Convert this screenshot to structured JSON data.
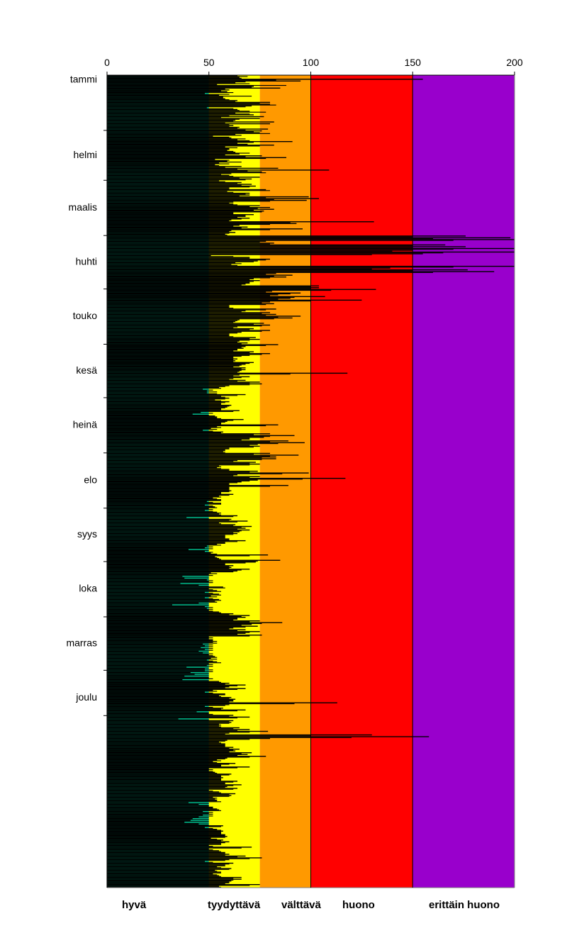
{
  "chart_data": {
    "type": "bar",
    "orientation": "horizontal",
    "x_axis": {
      "ticks": [
        0,
        50,
        100,
        150,
        200
      ],
      "range": [
        0,
        200
      ]
    },
    "y_axis": {
      "categories": [
        "tammi",
        "helmi",
        "maalis",
        "huhti",
        "touko",
        "kesä",
        "heinä",
        "elo",
        "syys",
        "loka",
        "marras",
        "joulu"
      ]
    },
    "days_per_month": [
      31,
      28,
      31,
      30,
      31,
      30,
      31,
      31,
      30,
      31,
      30,
      31
    ],
    "zones": [
      {
        "label": "hyvä",
        "from": 0,
        "to": 50,
        "color": "#00cc99"
      },
      {
        "label": "tyydyttävä",
        "from": 50,
        "to": 75,
        "color": "#ffff00"
      },
      {
        "label": "välttävä",
        "from": 75,
        "to": 100,
        "color": "#ff9900"
      },
      {
        "label": "huono",
        "from": 100,
        "to": 150,
        "color": "#ff0000"
      },
      {
        "label": "erittäin huono",
        "from": 150,
        "to": 200,
        "color": "#9900cc"
      }
    ],
    "series": [
      {
        "values": [
          64,
          65,
          155,
          95,
          63,
          54,
          72,
          85,
          60,
          59,
          48,
          55,
          57,
          58,
          64,
          80,
          80,
          71,
          49,
          64,
          70,
          63,
          72,
          77,
          75,
          63,
          82,
          80,
          62,
          65,
          79,
          76,
          75,
          63,
          52,
          61,
          64,
          91,
          64,
          82,
          58,
          60,
          59,
          63,
          65,
          76,
          88,
          53,
          59,
          55,
          53,
          66,
          84,
          109,
          76,
          61,
          60,
          75,
          71,
          55,
          66,
          71,
          73,
          60,
          78,
          59,
          70,
          70,
          99,
          104,
          98,
          62,
          62,
          75,
          80,
          82,
          77,
          62,
          72,
          68,
          70,
          61,
          131,
          93,
          65,
          69,
          96,
          61,
          63,
          58,
          176,
          198,
          200,
          78,
          82,
          166,
          176,
          200,
          150,
          200,
          155,
          51,
          70,
          80,
          74,
          63,
          61,
          200,
          139,
          177,
          190,
          83,
          91,
          88,
          72,
          75,
          70,
          68,
          104,
          104,
          132,
          81,
          95,
          84,
          107,
          90,
          125,
          80,
          82,
          60,
          60,
          83,
          68,
          80,
          83,
          95,
          91,
          65,
          63,
          77,
          80,
          64,
          72,
          80,
          66,
          60,
          60,
          73,
          75,
          65,
          69,
          84,
          68,
          67,
          64,
          72,
          80,
          70,
          62,
          64,
          63,
          72,
          68,
          65,
          68,
          68,
          65,
          118,
          65,
          70,
          62,
          68,
          75,
          76,
          60,
          55,
          47,
          49,
          49,
          68,
          56,
          60,
          53,
          60,
          56,
          61,
          59,
          56,
          65,
          46,
          42,
          53,
          54,
          67,
          59,
          56,
          84,
          54,
          51,
          47,
          57,
          80,
          92,
          77,
          70,
          89,
          97,
          74,
          75,
          60,
          58,
          57,
          80,
          94,
          83,
          83,
          64,
          73,
          75,
          55,
          54,
          60,
          74,
          99,
          64,
          75,
          117,
          74,
          66,
          60,
          89,
          60,
          60,
          61,
          56,
          62,
          55,
          52,
          56,
          49,
          56,
          48,
          53,
          50,
          48,
          54,
          55,
          64,
          39,
          61,
          69,
          55,
          63,
          71,
          68,
          70,
          65,
          64,
          58,
          58,
          60,
          68,
          58,
          54,
          49,
          48,
          40,
          48,
          51,
          79,
          53,
          55,
          85,
          73,
          58,
          62,
          61,
          70,
          64,
          51,
          50,
          37,
          38,
          49,
          50,
          36,
          45,
          57,
          50,
          54,
          48,
          55,
          51,
          48,
          55,
          53,
          45,
          32,
          48,
          49,
          50,
          55,
          62,
          70,
          68,
          64,
          75,
          86,
          71,
          74,
          62,
          68,
          75,
          68,
          76,
          50,
          50,
          52,
          52,
          47,
          48,
          46,
          48,
          45,
          47,
          50,
          53,
          51,
          49,
          54,
          50,
          49,
          39,
          48,
          48,
          41,
          43,
          38,
          50,
          37,
          55,
          60,
          68,
          60,
          68,
          52,
          48,
          58,
          55,
          61,
          63,
          62,
          113,
          60,
          48,
          57,
          68,
          44,
          50,
          62,
          70,
          35,
          62,
          61,
          55,
          55,
          65,
          70,
          79,
          60,
          130,
          158,
          80,
          59,
          55,
          58,
          58,
          62,
          65,
          63,
          71,
          69,
          78,
          59,
          54,
          52,
          63,
          56,
          70,
          50,
          50,
          53,
          61,
          56,
          57,
          56,
          64,
          58,
          66,
          59,
          64,
          50,
          55,
          63,
          61,
          52,
          53,
          54,
          40,
          45,
          50,
          52,
          55,
          47,
          50,
          47,
          45,
          42,
          41,
          38,
          45,
          57,
          48,
          54,
          57,
          56,
          58,
          59,
          51,
          57,
          60,
          56,
          50,
          71,
          50,
          55,
          58,
          60,
          68,
          76,
          60,
          48,
          62,
          58,
          54,
          61,
          53,
          56,
          52,
          55,
          66,
          66,
          61,
          60,
          75,
          55
        ]
      },
      {
        "values": [
          69,
          66,
          83,
          68,
          70,
          88,
          71,
          58,
          56,
          62,
          60,
          71,
          57,
          60,
          63,
          75,
          83,
          68,
          62,
          65,
          78,
          70,
          60,
          56,
          65,
          62,
          58,
          60,
          60,
          64,
          68,
          72,
          80,
          66,
          60,
          68,
          70,
          72,
          69,
          75,
          64,
          60,
          62,
          70,
          58,
          68,
          78,
          60,
          66,
          60,
          55,
          58,
          64,
          69,
          78,
          56,
          62,
          65,
          68,
          58,
          64,
          66,
          70,
          60,
          80,
          62,
          68,
          65,
          78,
          82,
          80,
          60,
          64,
          70,
          74,
          72,
          76,
          62,
          68,
          64,
          66,
          60,
          90,
          80,
          62,
          66,
          80,
          60,
          60,
          59,
          150,
          160,
          170,
          75,
          80,
          150,
          150,
          170,
          140,
          165,
          130,
          62,
          70,
          78,
          72,
          66,
          64,
          170,
          130,
          150,
          160,
          78,
          82,
          80,
          70,
          72,
          70,
          66,
          100,
          100,
          110,
          78,
          90,
          80,
          92,
          84,
          100,
          76,
          78,
          60,
          62,
          78,
          66,
          76,
          78,
          84,
          82,
          64,
          62,
          72,
          76,
          62,
          70,
          76,
          64,
          60,
          62,
          70,
          70,
          64,
          66,
          78,
          66,
          64,
          62,
          70,
          76,
          66,
          62,
          62,
          62,
          70,
          66,
          62,
          66,
          66,
          64,
          90,
          62,
          66,
          60,
          64,
          70,
          70,
          58,
          56,
          52,
          54,
          54,
          64,
          58,
          58,
          56,
          58,
          56,
          60,
          58,
          56,
          62,
          52,
          50,
          54,
          56,
          62,
          58,
          56,
          78,
          56,
          54,
          52,
          56,
          72,
          80,
          70,
          66,
          80,
          84,
          70,
          72,
          60,
          58,
          58,
          72,
          80,
          76,
          76,
          62,
          70,
          70,
          56,
          56,
          60,
          70,
          86,
          62,
          70,
          96,
          70,
          64,
          60,
          80,
          60,
          60,
          60,
          56,
          60,
          56,
          54,
          56,
          52,
          56,
          52,
          54,
          52,
          52,
          56,
          56,
          62,
          50,
          60,
          64,
          56,
          62,
          66,
          64,
          66,
          62,
          62,
          58,
          58,
          60,
          64,
          58,
          56,
          52,
          52,
          50,
          52,
          54,
          70,
          54,
          56,
          74,
          68,
          58,
          60,
          60,
          66,
          62,
          54,
          52,
          50,
          50,
          52,
          52,
          50,
          50,
          58,
          52,
          56,
          52,
          56,
          54,
          52,
          56,
          54,
          50,
          50,
          52,
          52,
          52,
          56,
          60,
          66,
          64,
          62,
          70,
          76,
          66,
          68,
          60,
          64,
          70,
          64,
          70,
          52,
          52,
          54,
          54,
          52,
          52,
          52,
          52,
          50,
          52,
          52,
          54,
          54,
          52,
          56,
          52,
          52,
          50,
          52,
          52,
          50,
          50,
          50,
          52,
          50,
          56,
          58,
          64,
          58,
          64,
          54,
          52,
          58,
          56,
          60,
          62,
          60,
          92,
          58,
          52,
          56,
          64,
          50,
          52,
          60,
          64,
          50,
          60,
          60,
          56,
          56,
          62,
          64,
          70,
          58,
          100,
          120,
          70,
          58,
          56,
          58,
          58,
          60,
          62,
          60,
          66,
          64,
          70,
          58,
          56,
          54,
          60,
          56,
          64,
          52,
          52,
          54,
          60,
          56,
          56,
          56,
          62,
          58,
          62,
          58,
          62,
          52,
          56,
          60,
          60,
          54,
          54,
          56,
          50,
          50,
          52,
          54,
          56,
          52,
          52,
          52,
          50,
          50,
          50,
          50,
          50,
          56,
          52,
          56,
          56,
          56,
          58,
          58,
          54,
          56,
          58,
          56,
          52,
          66,
          52,
          56,
          58,
          58,
          64,
          70,
          58,
          52,
          60,
          58,
          56,
          60,
          54,
          56,
          54,
          56,
          62,
          62,
          60,
          58,
          70,
          56
        ]
      }
    ]
  }
}
